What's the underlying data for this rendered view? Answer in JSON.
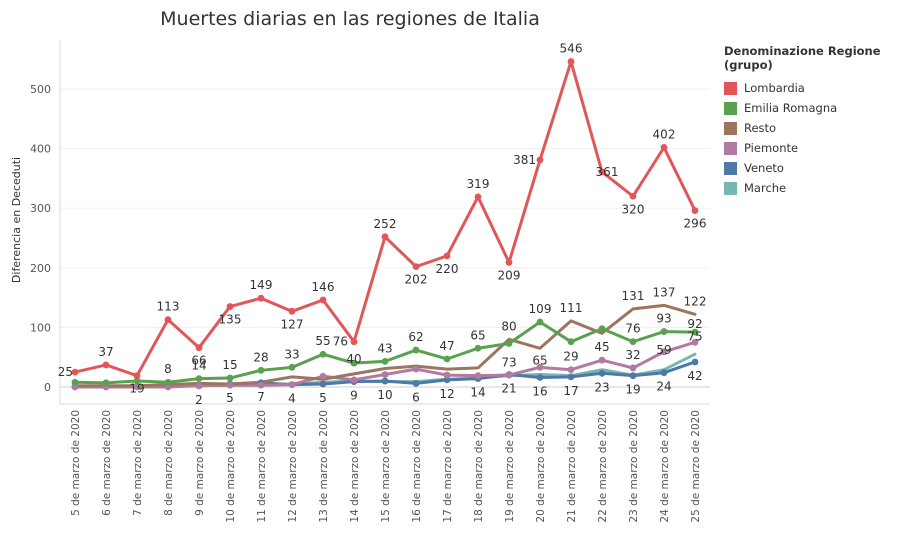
{
  "chart_data": {
    "type": "line",
    "title": "Muertes diarias en las regiones de Italia",
    "ylabel": "Diferencia en Deceduti",
    "xlabel": "",
    "ylim": [
      -30,
      560
    ],
    "yticks": [
      0,
      100,
      200,
      300,
      400,
      500
    ],
    "grid": true,
    "legend_position": "right",
    "legend_title": "Denominazione Regione (grupo)",
    "categories": [
      "5 de marzo de 2020",
      "6 de marzo de 2020",
      "7 de marzo de 2020",
      "8 de marzo de 2020",
      "9 de marzo de 2020",
      "10 de marzo de 2020",
      "11 de marzo de 2020",
      "12 de marzo de 2020",
      "13 de marzo de 2020",
      "14 de marzo de 2020",
      "15 de marzo de 2020",
      "16 de marzo de 2020",
      "17 de marzo de 2020",
      "18 de marzo de 2020",
      "19 de marzo de 2020",
      "20 de marzo de 2020",
      "21 de marzo de 2020",
      "22 de marzo de 2020",
      "23 de marzo de 2020",
      "24 de marzo de 2020",
      "25 de marzo de 2020"
    ],
    "series": [
      {
        "name": "Lombardia",
        "color": "#e15759",
        "markers": true,
        "values": [
          25,
          37,
          19,
          113,
          66,
          135,
          149,
          127,
          146,
          76,
          252,
          202,
          220,
          319,
          209,
          381,
          546,
          361,
          320,
          402,
          296
        ],
        "labels": [
          "25",
          "37",
          "19",
          "113",
          "66",
          "135",
          "149",
          "127",
          "146",
          "76",
          "252",
          "202",
          "220",
          "319",
          "209",
          "381",
          "546",
          "361",
          "320",
          "402",
          "296"
        ]
      },
      {
        "name": "Emilia Romagna",
        "color": "#59a14f",
        "markers": true,
        "values": [
          8,
          7,
          10,
          8,
          14,
          15,
          28,
          33,
          55,
          40,
          43,
          62,
          47,
          65,
          73,
          109,
          76,
          98,
          76,
          93,
          92
        ],
        "labels": [
          "",
          "",
          "",
          "8",
          "14",
          "15",
          "28",
          "33",
          "55",
          "40",
          "43",
          "62",
          "47",
          "65",
          "73",
          "109",
          "",
          "",
          "76",
          "93",
          "92"
        ]
      },
      {
        "name": "Resto",
        "color": "#9c755f",
        "markers": false,
        "values": [
          2,
          2,
          2,
          4,
          6,
          5,
          8,
          17,
          13,
          22,
          31,
          35,
          30,
          32,
          80,
          65,
          111,
          90,
          131,
          137,
          122
        ],
        "labels": [
          "",
          "",
          "",
          "",
          "",
          "",
          "",
          "",
          "",
          "",
          "",
          "",
          "",
          "",
          "80",
          "65",
          "111",
          "",
          "131",
          "137",
          "122"
        ]
      },
      {
        "name": "Piemonte",
        "color": "#b07aa1",
        "markers": true,
        "values": [
          0,
          0,
          0,
          0,
          2,
          3,
          3,
          4,
          18,
          12,
          21,
          30,
          20,
          19,
          20,
          33,
          29,
          45,
          32,
          59,
          75
        ],
        "labels": [
          "",
          "",
          "",
          "",
          "",
          "",
          "",
          "",
          "",
          "",
          "",
          "",
          "",
          "",
          "",
          "",
          "29",
          "45",
          "32",
          "59",
          "75"
        ]
      },
      {
        "name": "Veneto",
        "color": "#4e79a7",
        "markers": true,
        "values": [
          1,
          1,
          1,
          1,
          2,
          5,
          7,
          4,
          5,
          9,
          10,
          6,
          12,
          14,
          21,
          16,
          17,
          23,
          19,
          24,
          42
        ],
        "labels": [
          "",
          "",
          "",
          "",
          "2",
          "5",
          "7",
          "4",
          "5",
          "9",
          "10",
          "6",
          "12",
          "14",
          "21",
          "16",
          "17",
          "23",
          "19",
          "24",
          "42"
        ]
      },
      {
        "name": "Marche",
        "color": "#76b7b2",
        "markers": false,
        "values": [
          0,
          0,
          1,
          1,
          2,
          3,
          4,
          5,
          8,
          10,
          9,
          9,
          13,
          15,
          19,
          21,
          19,
          29,
          20,
          29,
          55
        ],
        "labels": [
          "",
          "",
          "",
          "",
          "",
          "",
          "",
          "",
          "",
          "",
          "",
          "",
          "",
          "",
          "",
          "",
          "",
          "",
          "",
          "",
          ""
        ]
      }
    ]
  }
}
